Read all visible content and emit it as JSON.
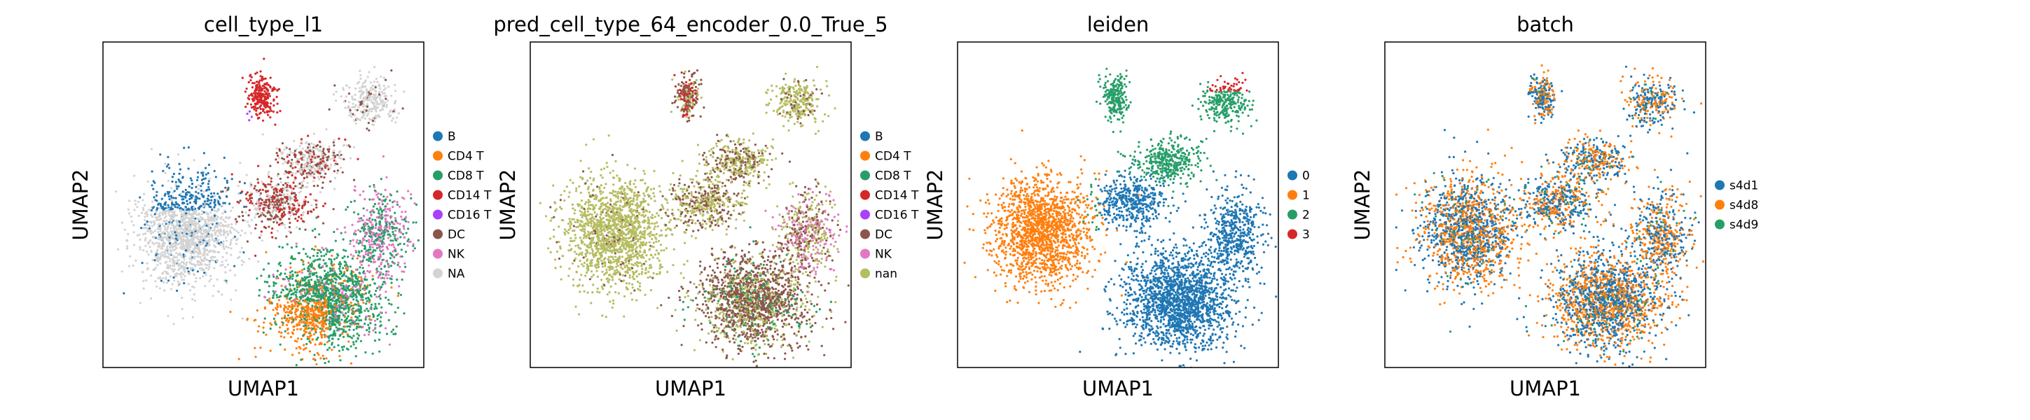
{
  "chart_data": [
    {
      "type": "scatter",
      "title": "cell_type_l1",
      "xlabel": "UMAP1",
      "ylabel": "UMAP2",
      "grid": false,
      "legend_placement": "right",
      "legend": [
        {
          "label": "B",
          "color": "#1f77b4"
        },
        {
          "label": "CD4 T",
          "color": "#ff7f0e"
        },
        {
          "label": "CD8 T",
          "color": "#279e68"
        },
        {
          "label": "CD14 T",
          "color": "#d62728"
        },
        {
          "label": "CD16 T",
          "color": "#aa40fc"
        },
        {
          "label": "DC",
          "color": "#8c564b"
        },
        {
          "label": "NK",
          "color": "#e377c2"
        },
        {
          "label": "NA",
          "color": "#d3d3d3"
        }
      ]
    },
    {
      "type": "scatter",
      "title": "pred_cell_type_64_encoder_0.0_True_5",
      "xlabel": "UMAP1",
      "ylabel": "UMAP2",
      "grid": false,
      "legend_placement": "right",
      "legend": [
        {
          "label": "B",
          "color": "#1f77b4"
        },
        {
          "label": "CD4 T",
          "color": "#ff7f0e"
        },
        {
          "label": "CD8 T",
          "color": "#279e68"
        },
        {
          "label": "CD14 T",
          "color": "#d62728"
        },
        {
          "label": "CD16 T",
          "color": "#aa40fc"
        },
        {
          "label": "DC",
          "color": "#8c564b"
        },
        {
          "label": "NK",
          "color": "#e377c2"
        },
        {
          "label": "nan",
          "color": "#b5bd61"
        }
      ]
    },
    {
      "type": "scatter",
      "title": "leiden",
      "xlabel": "UMAP1",
      "ylabel": "UMAP2",
      "grid": false,
      "legend_placement": "right",
      "legend": [
        {
          "label": "0",
          "color": "#1f77b4"
        },
        {
          "label": "1",
          "color": "#ff7f0e"
        },
        {
          "label": "2",
          "color": "#279e68"
        },
        {
          "label": "3",
          "color": "#d62728"
        }
      ]
    },
    {
      "type": "scatter",
      "title": "batch",
      "xlabel": "UMAP1",
      "ylabel": "UMAP2",
      "grid": false,
      "legend_placement": "right",
      "legend": [
        {
          "label": "s4d1",
          "color": "#1f77b4"
        },
        {
          "label": "s4d8",
          "color": "#ff7f0e"
        },
        {
          "label": "s4d9",
          "color": "#279e68"
        }
      ]
    }
  ]
}
